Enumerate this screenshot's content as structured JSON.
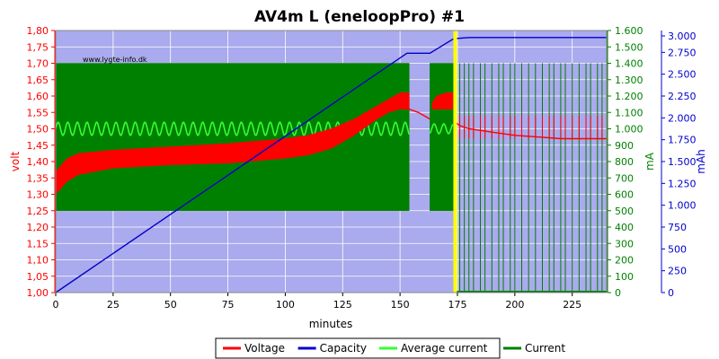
{
  "chart_data": {
    "type": "line",
    "title": "AV4m L (eneloopPro) #1",
    "watermark": "www.lygte-info.dk",
    "xlabel": "minutes",
    "xlim": [
      0,
      240
    ],
    "x_ticks": [
      "0",
      "25",
      "50",
      "75",
      "100",
      "125",
      "150",
      "175",
      "200",
      "225"
    ],
    "axes": {
      "volt": {
        "label": "volt",
        "color": "#ff0000",
        "lim": [
          1.0,
          1.8
        ],
        "ticks": [
          "1,00",
          "1,05",
          "1,10",
          "1,15",
          "1,20",
          "1,25",
          "1,30",
          "1,35",
          "1,40",
          "1,45",
          "1,50",
          "1,55",
          "1,60",
          "1,65",
          "1,70",
          "1,75",
          "1,80"
        ]
      },
      "ma": {
        "label": "mA",
        "color": "#008000",
        "lim": [
          0,
          1600
        ],
        "ticks": [
          "0",
          "100",
          "200",
          "300",
          "400",
          "500",
          "600",
          "700",
          "800",
          "900",
          "1.000",
          "1.100",
          "1.200",
          "1.300",
          "1.400",
          "1.500",
          "1.600"
        ]
      },
      "mah": {
        "label": "mAh",
        "color": "#0000cc",
        "lim": [
          0,
          3000
        ],
        "ticks": [
          "0",
          "250",
          "500",
          "750",
          "1.000",
          "1.250",
          "1.500",
          "1.750",
          "2.000",
          "2.250",
          "2.500",
          "2.750",
          "3.000"
        ]
      }
    },
    "legend": {
      "placement": "bottom-center",
      "entries": [
        "Voltage",
        "Capacity",
        "Average current",
        "Current"
      ]
    },
    "series": [
      {
        "name": "Voltage",
        "axis": "volt",
        "color": "#ff0000",
        "style": "band",
        "x": [
          0,
          5,
          10,
          25,
          50,
          75,
          100,
          110,
          120,
          130,
          140,
          145,
          150,
          154
        ],
        "low": [
          1.3,
          1.34,
          1.36,
          1.38,
          1.39,
          1.395,
          1.41,
          1.42,
          1.44,
          1.48,
          1.53,
          1.55,
          1.56,
          1.56
        ],
        "high": [
          1.37,
          1.41,
          1.425,
          1.435,
          1.445,
          1.455,
          1.47,
          1.48,
          1.5,
          1.53,
          1.57,
          1.59,
          1.61,
          1.61
        ]
      },
      {
        "name": "Voltage",
        "axis": "volt",
        "color": "#ff0000",
        "style": "line",
        "x": [
          154,
          158,
          163
        ],
        "y": [
          1.56,
          1.55,
          1.53
        ]
      },
      {
        "name": "Voltage",
        "axis": "volt",
        "color": "#ff0000",
        "style": "band",
        "x": [
          164,
          166,
          170,
          173
        ],
        "low": [
          1.56,
          1.56,
          1.56,
          1.56
        ],
        "high": [
          1.58,
          1.6,
          1.61,
          1.61
        ]
      },
      {
        "name": "Voltage",
        "axis": "volt",
        "color": "#ff0000",
        "style": "line",
        "x": [
          174,
          176,
          180,
          190,
          200,
          210,
          220,
          240
        ],
        "y": [
          1.52,
          1.51,
          1.5,
          1.49,
          1.48,
          1.475,
          1.47,
          1.47
        ]
      },
      {
        "name": "Capacity",
        "axis": "mah",
        "color": "#0000cc",
        "style": "line",
        "x": [
          0,
          153,
          163,
          173,
          175,
          180,
          240
        ],
        "y": [
          0,
          2740,
          2740,
          2900,
          2910,
          2920,
          2920
        ]
      },
      {
        "name": "Current",
        "axis": "ma",
        "color": "#008000",
        "style": "band",
        "x": [
          0,
          154
        ],
        "low": [
          500,
          500
        ],
        "high": [
          1400,
          1400
        ]
      },
      {
        "name": "Current",
        "axis": "ma",
        "color": "#008000",
        "style": "band",
        "x": [
          163,
          174
        ],
        "low": [
          500,
          500
        ],
        "high": [
          1400,
          1400
        ]
      },
      {
        "name": "Average current",
        "axis": "ma",
        "color": "#33ff33",
        "style": "wave",
        "x": [
          0,
          154
        ],
        "center": 1000,
        "amplitude": 40,
        "period": 4.2
      },
      {
        "name": "Average current",
        "axis": "ma",
        "color": "#33ff33",
        "style": "wave",
        "x": [
          163,
          173
        ],
        "center": 1000,
        "amplitude": 30,
        "period": 4.2
      }
    ],
    "current_pulses": {
      "axis": "ma",
      "color": "#008000",
      "peak": 1400,
      "x": [
        176,
        178,
        180,
        182,
        185,
        187,
        190,
        193,
        195,
        198,
        200,
        203,
        206,
        209,
        212,
        215,
        217,
        220,
        222,
        225,
        228,
        231,
        233,
        236,
        238
      ]
    },
    "charge_marker": {
      "x": 174,
      "color": "#ffff00"
    }
  }
}
